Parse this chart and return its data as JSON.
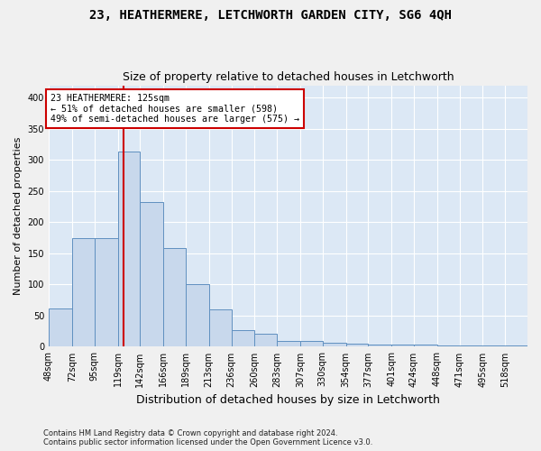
{
  "title": "23, HEATHERMERE, LETCHWORTH GARDEN CITY, SG6 4QH",
  "subtitle": "Size of property relative to detached houses in Letchworth",
  "xlabel": "Distribution of detached houses by size in Letchworth",
  "ylabel": "Number of detached properties",
  "categories": [
    "48sqm",
    "72sqm",
    "95sqm",
    "119sqm",
    "142sqm",
    "166sqm",
    "189sqm",
    "213sqm",
    "236sqm",
    "260sqm",
    "283sqm",
    "307sqm",
    "330sqm",
    "354sqm",
    "377sqm",
    "401sqm",
    "424sqm",
    "448sqm",
    "471sqm",
    "495sqm",
    "518sqm"
  ],
  "bar_heights": [
    62,
    175,
    175,
    313,
    232,
    158,
    101,
    60,
    27,
    21,
    10,
    10,
    7,
    5,
    3,
    3,
    3,
    2,
    2,
    2,
    2
  ],
  "bin_edges": [
    48,
    72,
    95,
    119,
    142,
    166,
    189,
    213,
    236,
    260,
    283,
    307,
    330,
    354,
    377,
    401,
    424,
    448,
    471,
    495,
    518,
    541
  ],
  "bar_color": "#c8d8ec",
  "bar_edge_color": "#6090c0",
  "vline_x": 125,
  "vline_color": "#cc0000",
  "ylim": [
    0,
    420
  ],
  "yticks": [
    0,
    50,
    100,
    150,
    200,
    250,
    300,
    350,
    400
  ],
  "annotation_text": "23 HEATHERMERE: 125sqm\n← 51% of detached houses are smaller (598)\n49% of semi-detached houses are larger (575) →",
  "annotation_box_color": "#ffffff",
  "annotation_box_edge": "#cc0000",
  "bg_color": "#dce8f5",
  "grid_color": "#ffffff",
  "fig_bg_color": "#f0f0f0",
  "footer": "Contains HM Land Registry data © Crown copyright and database right 2024.\nContains public sector information licensed under the Open Government Licence v3.0.",
  "title_fontsize": 10,
  "subtitle_fontsize": 9,
  "xlabel_fontsize": 9,
  "ylabel_fontsize": 8,
  "tick_fontsize": 7,
  "footer_fontsize": 6
}
